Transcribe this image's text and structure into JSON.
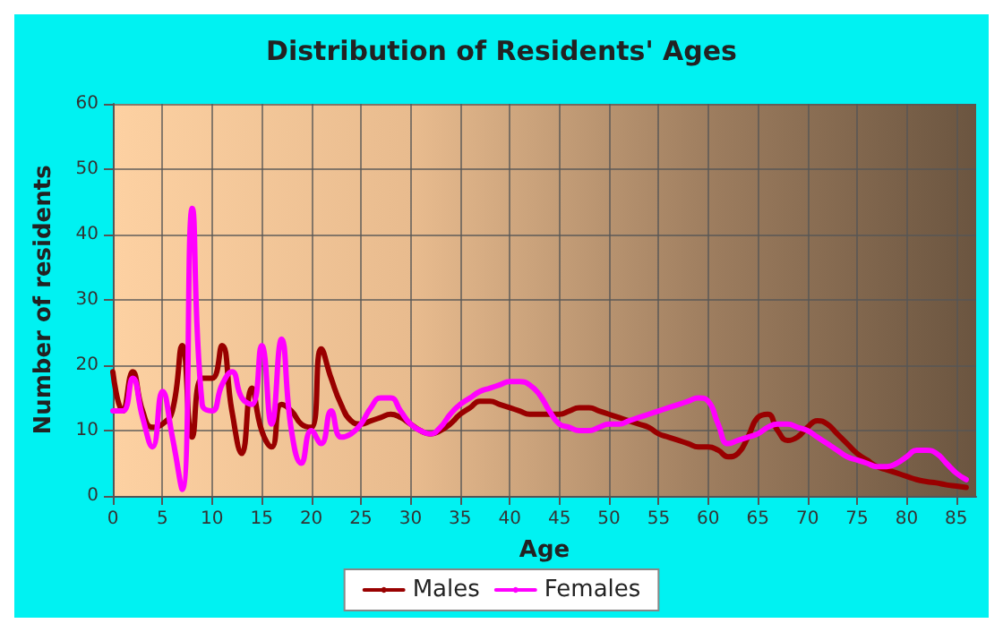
{
  "chart_data": {
    "type": "line",
    "title": "Distribution of Residents' Ages",
    "xlabel": "Age",
    "ylabel": "Number of residents",
    "x": [
      0,
      1,
      2,
      3,
      4,
      5,
      6,
      7,
      8,
      9,
      10,
      11,
      12,
      13,
      14,
      15,
      16,
      17,
      18,
      19,
      20,
      21,
      22,
      23,
      24,
      25,
      26,
      27,
      28,
      29,
      30,
      31,
      32,
      33,
      34,
      35,
      36,
      37,
      38,
      39,
      40,
      41,
      42,
      43,
      44,
      45,
      46,
      47,
      48,
      49,
      50,
      51,
      52,
      53,
      54,
      55,
      56,
      57,
      58,
      59,
      60,
      61,
      62,
      63,
      64,
      65,
      66,
      67,
      68,
      69,
      70,
      71,
      72,
      73,
      74,
      75,
      76,
      77,
      78,
      79,
      80,
      81,
      82,
      83,
      84,
      85,
      86
    ],
    "series": [
      {
        "name": "Males",
        "color": "#990000",
        "values": [
          19,
          13,
          19,
          13,
          10.5,
          11,
          13,
          23,
          9,
          18,
          18,
          23,
          13,
          6.5,
          16.5,
          10,
          7.5,
          14,
          13,
          11,
          10.5,
          22.5,
          18,
          14,
          11.5,
          11,
          11.5,
          12,
          12.5,
          12,
          11,
          10,
          9.5,
          10,
          11,
          12.5,
          13.5,
          14.5,
          14.5,
          14,
          13.5,
          13,
          12.5,
          12.5,
          12.5,
          12.5,
          13,
          13.5,
          13.5,
          13,
          12.5,
          12,
          11.5,
          11,
          10.5,
          9.5,
          9,
          8.5,
          8,
          7.5,
          7.5,
          7,
          6,
          6.5,
          9,
          12,
          12.5,
          10,
          8.5,
          9,
          10.5,
          11.5,
          11,
          9.5,
          8,
          6.5,
          5.5,
          4.5,
          4,
          3.5,
          3,
          2.5,
          2.2,
          2,
          1.7,
          1.5,
          1.3
        ]
      },
      {
        "name": "Females",
        "color": "#ff00ff",
        "values": [
          13,
          13,
          18,
          12,
          7.5,
          16,
          9,
          1,
          44,
          14,
          13,
          17,
          19,
          15,
          14,
          23,
          11,
          24,
          10,
          5,
          10,
          8,
          13,
          9,
          9.5,
          11,
          13.5,
          15,
          15,
          13,
          11,
          10,
          9.5,
          10.5,
          12.5,
          14,
          15,
          16,
          16.5,
          17,
          17.5,
          17.5,
          17,
          15.5,
          13,
          11,
          10.5,
          10,
          10,
          10.5,
          11,
          11,
          11.5,
          12,
          12.5,
          13,
          13.5,
          14,
          14.5,
          15,
          14.5,
          11,
          8,
          8.5,
          9,
          9.5,
          10.5,
          11,
          11,
          10.5,
          10,
          9,
          8,
          7,
          6,
          5.5,
          5,
          4.5,
          4.5,
          5,
          6,
          7,
          7,
          6.5,
          5,
          3.5,
          2.5
        ]
      }
    ],
    "xlim": [
      0,
      87
    ],
    "xticks": [
      0,
      5,
      10,
      15,
      20,
      25,
      30,
      35,
      40,
      45,
      50,
      55,
      60,
      65,
      70,
      75,
      80,
      85
    ],
    "ylim": [
      0,
      60
    ],
    "yticks": [
      0,
      10,
      20,
      30,
      40,
      50,
      60
    ],
    "grid": true,
    "legend": "bottom"
  }
}
